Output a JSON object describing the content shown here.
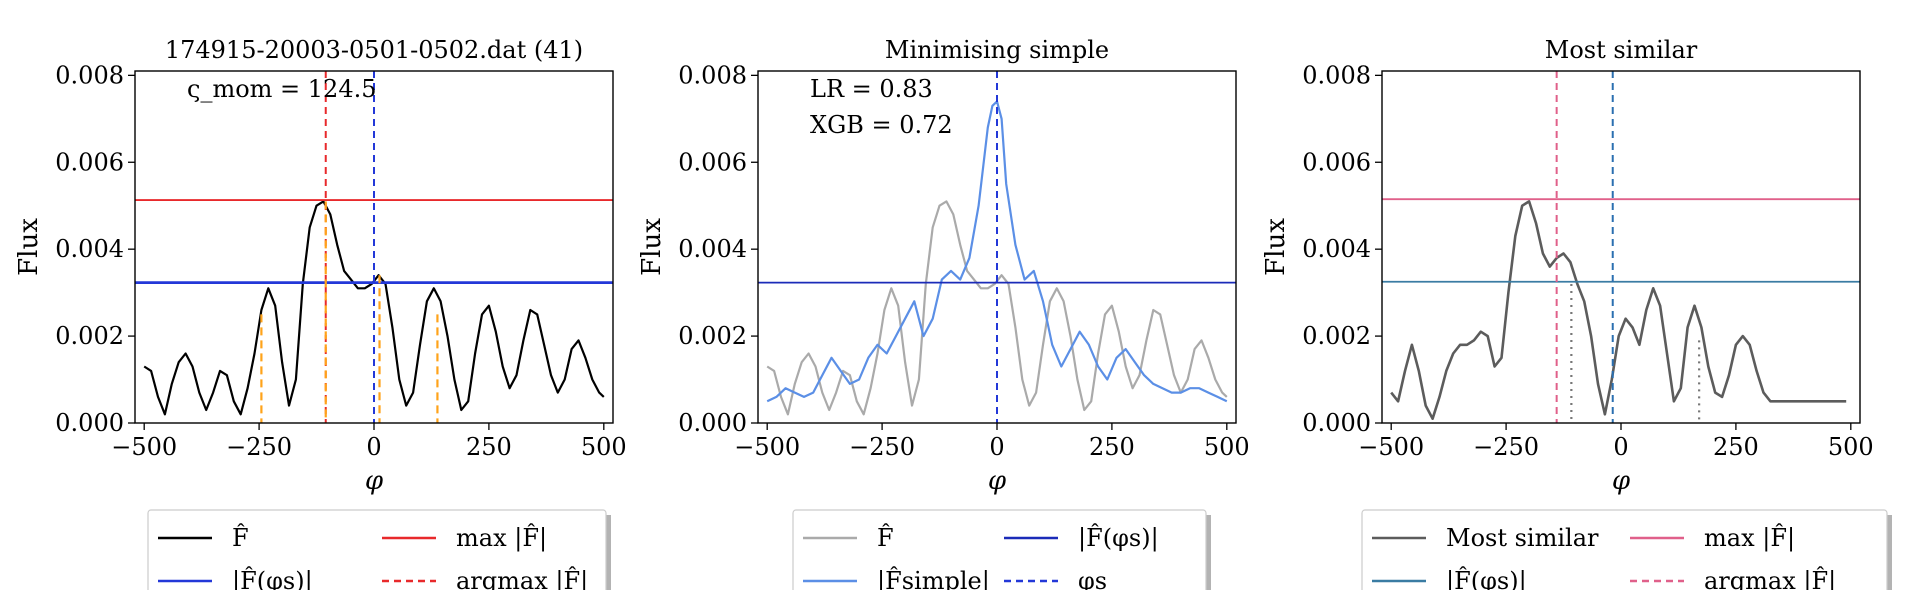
{
  "chart_data": [
    {
      "type": "line",
      "title": "174915-20003-0501-0502.dat (41)",
      "xlabel": "φ",
      "ylabel": "Flux",
      "xlim": [
        -520,
        520
      ],
      "ylim": [
        0,
        0.0081
      ],
      "xticks": [
        -500,
        -250,
        0,
        250,
        500
      ],
      "xtick_labels": [
        "−500",
        "−250",
        "0",
        "250",
        "500"
      ],
      "yticks": [
        0,
        0.002,
        0.004,
        0.006,
        0.008
      ],
      "ytick_labels": [
        "0.000",
        "0.002",
        "0.004",
        "0.006",
        "0.008"
      ],
      "annotation": "ς_mom = 124.5",
      "series": [
        {
          "name": "F̂",
          "color": "#000000",
          "x": [
            -500,
            -485,
            -470,
            -455,
            -440,
            -425,
            -410,
            -395,
            -380,
            -365,
            -350,
            -335,
            -320,
            -305,
            -290,
            -275,
            -260,
            -245,
            -230,
            -215,
            -200,
            -185,
            -170,
            -155,
            -140,
            -125,
            -110,
            -95,
            -80,
            -65,
            -50,
            -35,
            -20,
            -5,
            10,
            25,
            40,
            55,
            70,
            85,
            100,
            115,
            130,
            145,
            160,
            175,
            190,
            205,
            220,
            235,
            250,
            265,
            280,
            295,
            310,
            325,
            340,
            355,
            370,
            385,
            400,
            415,
            430,
            445,
            460,
            475,
            490,
            500
          ],
          "y": [
            0.0013,
            0.0012,
            0.0006,
            0.0002,
            0.0009,
            0.0014,
            0.0016,
            0.0013,
            0.0007,
            0.0003,
            0.0007,
            0.0012,
            0.0011,
            0.0005,
            0.0002,
            0.0008,
            0.0016,
            0.0026,
            0.0031,
            0.0027,
            0.0014,
            0.0004,
            0.001,
            0.0032,
            0.0045,
            0.005,
            0.0051,
            0.0048,
            0.0041,
            0.0035,
            0.0033,
            0.0031,
            0.0031,
            0.0032,
            0.0034,
            0.0032,
            0.0022,
            0.001,
            0.0004,
            0.0007,
            0.0018,
            0.0028,
            0.0031,
            0.0028,
            0.002,
            0.001,
            0.0003,
            0.0005,
            0.0016,
            0.0025,
            0.0027,
            0.0021,
            0.0013,
            0.0008,
            0.0011,
            0.0019,
            0.0026,
            0.0025,
            0.0018,
            0.0011,
            0.0007,
            0.001,
            0.0017,
            0.0019,
            0.0015,
            0.001,
            0.0007,
            0.0006
          ]
        }
      ],
      "hlines": [
        {
          "name": "max|F̂|",
          "y": 0.00513,
          "color": "#e8292b",
          "style": "solid"
        },
        {
          "name": "|F̂(φs)|",
          "y": 0.00323,
          "color": "#2338d8",
          "style": "solid"
        }
      ],
      "vlines": [
        {
          "name": "argmax |F̂|",
          "x": -105,
          "color": "#e8292b",
          "style": "dashed",
          "ymax": 0.0081
        },
        {
          "name": "φs",
          "x": 0,
          "color": "#2338d8",
          "style": "dashed",
          "ymax": 0.0081
        }
      ],
      "peak_markers": [
        {
          "x": -245,
          "y": 0.0025
        },
        {
          "x": -105,
          "y": 0.0051
        },
        {
          "x": 12,
          "y": 0.0034
        },
        {
          "x": 138,
          "y": 0.0025
        }
      ],
      "peak_marker_color": "#ffa31a",
      "legend": {
        "placement": "bottom",
        "entries": [
          {
            "label": "F̂",
            "color": "#000000",
            "style": "solid"
          },
          {
            "label": "max |F̂|",
            "color": "#e8292b",
            "style": "solid"
          },
          {
            "label": "|F̂(φs)|",
            "color": "#2338d8",
            "style": "solid"
          },
          {
            "label": "argmax |F̂|",
            "color": "#e8292b",
            "style": "dashed"
          }
        ]
      }
    },
    {
      "type": "line",
      "title": "Minimising simple",
      "xlabel": "φ",
      "ylabel": "Flux",
      "xlim": [
        -520,
        520
      ],
      "ylim": [
        0,
        0.0081
      ],
      "xticks": [
        -500,
        -250,
        0,
        250,
        500
      ],
      "xtick_labels": [
        "−500",
        "−250",
        "0",
        "250",
        "500"
      ],
      "yticks": [
        0,
        0.002,
        0.004,
        0.006,
        0.008
      ],
      "ytick_labels": [
        "0.000",
        "0.002",
        "0.004",
        "0.006",
        "0.008"
      ],
      "annotations": [
        "LR = 0.83",
        "XGB = 0.72"
      ],
      "series": [
        {
          "name": "F̂",
          "color": "#aaaaaa",
          "x": [
            -500,
            -485,
            -470,
            -455,
            -440,
            -425,
            -410,
            -395,
            -380,
            -365,
            -350,
            -335,
            -320,
            -305,
            -290,
            -275,
            -260,
            -245,
            -230,
            -215,
            -200,
            -185,
            -170,
            -155,
            -140,
            -125,
            -110,
            -95,
            -80,
            -65,
            -50,
            -35,
            -20,
            -5,
            10,
            25,
            40,
            55,
            70,
            85,
            100,
            115,
            130,
            145,
            160,
            175,
            190,
            205,
            220,
            235,
            250,
            265,
            280,
            295,
            310,
            325,
            340,
            355,
            370,
            385,
            400,
            415,
            430,
            445,
            460,
            475,
            490,
            500
          ],
          "y": [
            0.0013,
            0.0012,
            0.0006,
            0.0002,
            0.0009,
            0.0014,
            0.0016,
            0.0013,
            0.0007,
            0.0003,
            0.0007,
            0.0012,
            0.0011,
            0.0005,
            0.0002,
            0.0008,
            0.0016,
            0.0026,
            0.0031,
            0.0027,
            0.0014,
            0.0004,
            0.001,
            0.0032,
            0.0045,
            0.005,
            0.0051,
            0.0048,
            0.0041,
            0.0035,
            0.0033,
            0.0031,
            0.0031,
            0.0032,
            0.0034,
            0.0032,
            0.0022,
            0.001,
            0.0004,
            0.0007,
            0.0018,
            0.0028,
            0.0031,
            0.0028,
            0.002,
            0.001,
            0.0003,
            0.0005,
            0.0016,
            0.0025,
            0.0027,
            0.0021,
            0.0013,
            0.0008,
            0.0011,
            0.0019,
            0.0026,
            0.0025,
            0.0018,
            0.0011,
            0.0007,
            0.001,
            0.0017,
            0.0019,
            0.0015,
            0.001,
            0.0007,
            0.0006
          ]
        },
        {
          "name": "|F̂simple|",
          "color": "#5b8fe6",
          "x": [
            -500,
            -480,
            -460,
            -440,
            -420,
            -400,
            -380,
            -360,
            -340,
            -320,
            -300,
            -280,
            -260,
            -240,
            -220,
            -200,
            -180,
            -160,
            -140,
            -120,
            -100,
            -80,
            -60,
            -40,
            -20,
            -10,
            0,
            10,
            20,
            40,
            60,
            80,
            100,
            120,
            140,
            160,
            180,
            200,
            220,
            240,
            260,
            280,
            300,
            320,
            340,
            360,
            380,
            400,
            420,
            440,
            460,
            480,
            500
          ],
          "y": [
            0.0005,
            0.0006,
            0.0008,
            0.0007,
            0.0006,
            0.0007,
            0.0011,
            0.0015,
            0.0012,
            0.0009,
            0.001,
            0.0015,
            0.0018,
            0.0016,
            0.002,
            0.0024,
            0.0028,
            0.002,
            0.0024,
            0.0033,
            0.0035,
            0.0033,
            0.0038,
            0.005,
            0.0068,
            0.0073,
            0.0074,
            0.007,
            0.0055,
            0.0041,
            0.0033,
            0.0035,
            0.0028,
            0.0018,
            0.0013,
            0.0017,
            0.0021,
            0.0018,
            0.0013,
            0.001,
            0.0015,
            0.0017,
            0.0014,
            0.0011,
            0.0009,
            0.0008,
            0.0007,
            0.0007,
            0.0008,
            0.0008,
            0.0007,
            0.0006,
            0.0005
          ]
        }
      ],
      "hlines": [
        {
          "name": "|F̂(φs)|",
          "y": 0.00323,
          "color": "#1b2bb8",
          "style": "solid"
        }
      ],
      "vlines": [
        {
          "name": "φs",
          "x": 0,
          "color": "#2338d8",
          "style": "dashed",
          "ymax": 0.0081
        }
      ],
      "legend": {
        "placement": "bottom",
        "entries": [
          {
            "label": "F̂",
            "color": "#aaaaaa",
            "style": "solid"
          },
          {
            "label": "|F̂(φs)|",
            "color": "#1b2bb8",
            "style": "solid"
          },
          {
            "label": "|F̂simple|",
            "color": "#5b8fe6",
            "style": "solid"
          },
          {
            "label": "φs",
            "color": "#2338d8",
            "style": "dashed"
          }
        ]
      }
    },
    {
      "type": "line",
      "title": "Most similar",
      "xlabel": "φ",
      "ylabel": "Flux",
      "xlim": [
        -520,
        520
      ],
      "ylim": [
        0,
        0.0081
      ],
      "xticks": [
        -500,
        -250,
        0,
        250,
        500
      ],
      "xtick_labels": [
        "−500",
        "−250",
        "0",
        "250",
        "500"
      ],
      "yticks": [
        0,
        0.002,
        0.004,
        0.006,
        0.008
      ],
      "ytick_labels": [
        "0.000",
        "0.002",
        "0.004",
        "0.006",
        "0.008"
      ],
      "series": [
        {
          "name": "Most similar",
          "color": "#5c5c5c",
          "x": [
            -500,
            -485,
            -470,
            -455,
            -440,
            -425,
            -410,
            -395,
            -380,
            -365,
            -350,
            -335,
            -320,
            -305,
            -290,
            -275,
            -260,
            -245,
            -230,
            -215,
            -200,
            -185,
            -170,
            -155,
            -140,
            -125,
            -110,
            -95,
            -80,
            -65,
            -50,
            -35,
            -20,
            -5,
            10,
            25,
            40,
            55,
            70,
            85,
            100,
            115,
            130,
            145,
            160,
            175,
            190,
            205,
            220,
            235,
            250,
            265,
            280,
            295,
            310,
            325,
            340,
            355,
            370,
            385,
            400,
            415,
            430,
            445,
            460,
            475,
            490
          ],
          "y": [
            0.0007,
            0.0005,
            0.0012,
            0.0018,
            0.0012,
            0.0004,
            0.0001,
            0.0006,
            0.0012,
            0.0016,
            0.0018,
            0.0018,
            0.0019,
            0.0021,
            0.002,
            0.0013,
            0.0015,
            0.003,
            0.0043,
            0.005,
            0.0051,
            0.0046,
            0.0039,
            0.0036,
            0.0038,
            0.0039,
            0.0037,
            0.0032,
            0.0028,
            0.002,
            0.0009,
            0.0002,
            0.001,
            0.002,
            0.0024,
            0.0022,
            0.0018,
            0.0026,
            0.0031,
            0.0027,
            0.0016,
            0.0005,
            0.0008,
            0.0022,
            0.0027,
            0.0022,
            0.0013,
            0.0007,
            0.0006,
            0.0011,
            0.0018,
            0.002,
            0.0018,
            0.0012,
            0.0007,
            0.0005,
            0.0005,
            0.0005,
            0.0005,
            0.0005,
            0.0005,
            0.0005,
            0.0005,
            0.0005,
            0.0005,
            0.0005,
            0.0005
          ]
        }
      ],
      "hlines": [
        {
          "name": "max|F̂|",
          "y": 0.00515,
          "color": "#e0608a",
          "style": "solid"
        },
        {
          "name": "|F̂(φs)|",
          "y": 0.00325,
          "color": "#3a7ca3",
          "style": "solid"
        }
      ],
      "vlines": [
        {
          "name": "argmax |F̂|",
          "x": -140,
          "color": "#e0608a",
          "style": "dashed",
          "ymax": 0.0081
        },
        {
          "name": "φs",
          "x": -18,
          "color": "#2b6fb0",
          "style": "dashed",
          "ymax": 0.0081
        }
      ],
      "dotted_markers": [
        {
          "x": -108,
          "y": 0.0032
        },
        {
          "x": 170,
          "y": 0.0019
        }
      ],
      "dotted_marker_color": "#777777",
      "legend": {
        "placement": "bottom",
        "entries": [
          {
            "label": "Most similar",
            "color": "#5c5c5c",
            "style": "solid"
          },
          {
            "label": "max |F̂|",
            "color": "#e0608a",
            "style": "solid"
          },
          {
            "label": "|F̂(φs)|",
            "color": "#3a7ca3",
            "style": "solid"
          },
          {
            "label": "argmax |F̂|",
            "color": "#e0608a",
            "style": "dashed"
          }
        ]
      }
    }
  ]
}
